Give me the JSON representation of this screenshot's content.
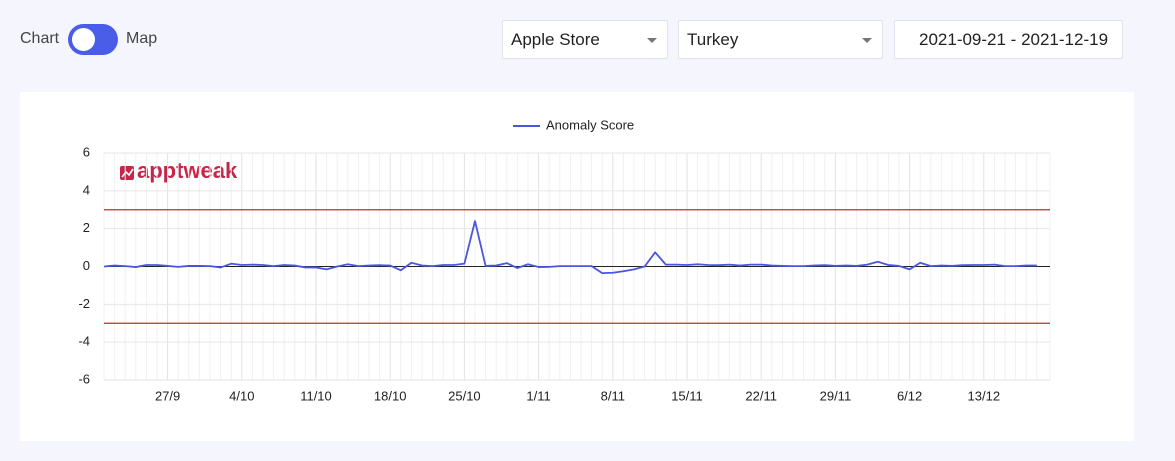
{
  "toggle": {
    "left": "Chart",
    "right": "Map"
  },
  "filters": {
    "store": "Apple Store",
    "country": "Turkey",
    "date_range": "2021-09-21 - 2021-12-19"
  },
  "chart_data": {
    "type": "line",
    "watermark": "apptweak",
    "categories": [
      null,
      null,
      null,
      null,
      null,
      null,
      "27/9",
      null,
      null,
      null,
      null,
      null,
      null,
      "4/10",
      null,
      null,
      null,
      null,
      null,
      null,
      "11/10",
      null,
      null,
      null,
      null,
      null,
      null,
      "18/10",
      null,
      null,
      null,
      null,
      null,
      null,
      "25/10",
      null,
      null,
      null,
      null,
      null,
      null,
      "1/11",
      null,
      null,
      null,
      null,
      null,
      null,
      "8/11",
      null,
      null,
      null,
      null,
      null,
      null,
      "15/11",
      null,
      null,
      null,
      null,
      null,
      null,
      "22/11",
      null,
      null,
      null,
      null,
      null,
      null,
      "29/11",
      null,
      null,
      null,
      null,
      null,
      null,
      "6/12",
      null,
      null,
      null,
      null,
      null,
      null,
      "13/12",
      null,
      null,
      null,
      null,
      null
    ],
    "series": [
      {
        "name": "Anomaly Score",
        "color": "#4a55e0",
        "values": [
          0,
          0.05,
          0.02,
          -0.03,
          0.08,
          0.08,
          0.03,
          -0.02,
          0.03,
          0.03,
          0.02,
          -0.05,
          0.15,
          0.08,
          0.1,
          0.08,
          0.02,
          0.08,
          0.05,
          -0.05,
          -0.05,
          -0.15,
          0,
          0.12,
          0.02,
          0.05,
          0.07,
          0.05,
          -0.2,
          0.2,
          0.05,
          0.02,
          0.08,
          0.08,
          0.15,
          2.4,
          0.03,
          0.05,
          0.18,
          -0.08,
          0.12,
          -0.03,
          -0.02,
          0.02,
          0.02,
          0.02,
          0.02,
          -0.35,
          -0.33,
          -0.25,
          -0.15,
          0,
          0.75,
          0.1,
          0.1,
          0.08,
          0.12,
          0.08,
          0.07,
          0.1,
          0.05,
          0.1,
          0.1,
          0.05,
          0.03,
          0.02,
          0.02,
          0.05,
          0.07,
          0.03,
          0.05,
          0.03,
          0.1,
          0.25,
          0.08,
          0.03,
          -0.15,
          0.2,
          0.02,
          0.05,
          0.03,
          0.07,
          0.08,
          0.08,
          0.1,
          0.02,
          0.02,
          0.05,
          0.05
        ]
      }
    ],
    "reference_lines": [
      {
        "value": 3,
        "color": "#b5322e"
      },
      {
        "value": -3,
        "color": "#b5322e"
      }
    ],
    "ylim": [
      -6,
      6
    ],
    "yticks": [
      -6,
      -4,
      -2,
      0,
      2,
      4,
      6
    ],
    "grid": true,
    "legend": "top"
  }
}
